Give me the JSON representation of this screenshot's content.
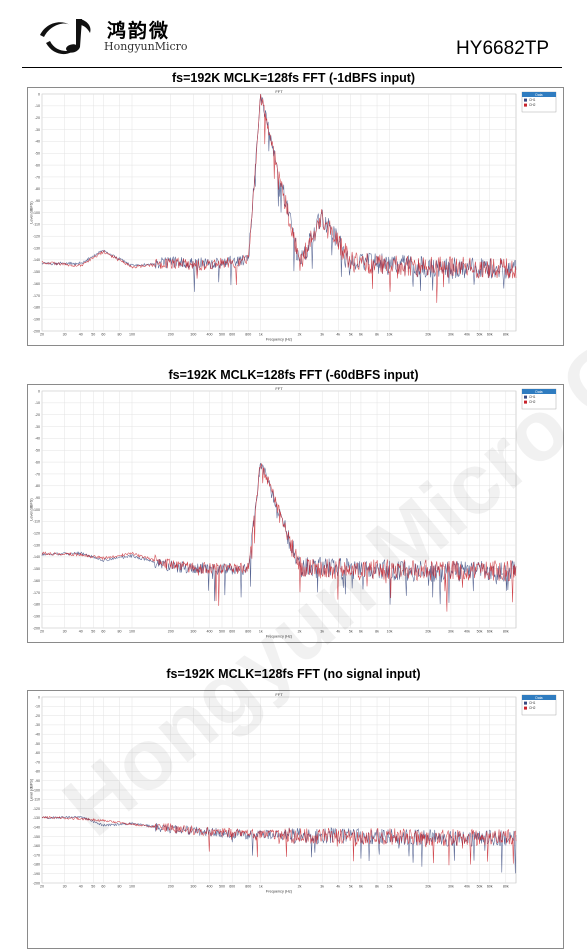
{
  "header": {
    "logo_cn": "鸿韵微",
    "logo_en": "HongyunMicro",
    "part_number": "HY6682TP"
  },
  "watermark": "Hongyun Micro Confidential",
  "colors": {
    "ch1": "#3a4a80",
    "ch2": "#c8232c",
    "grid": "#e3e3e3",
    "legend_header": "#2f7cc0"
  },
  "charts": [
    {
      "heading": "fs=192K MCLK=128fs FFT (-1dBFS input)",
      "title": "FFT",
      "xlabel": "Frequency (Hz)",
      "ylabel": "Level (dBFS)",
      "legend_title": "Data",
      "legend": [
        "CH1",
        "CH2"
      ],
      "x_ticks": [
        "20",
        "30",
        "40",
        "50",
        "60",
        "80",
        "100",
        "200",
        "300",
        "400",
        "500",
        "600",
        "800",
        "1k",
        "2k",
        "3k",
        "4k",
        "5k",
        "6k",
        "8k",
        "10k",
        "20k",
        "30k",
        "40k",
        "50k",
        "60k",
        "80k"
      ],
      "y_ticks": [
        "0",
        "-10",
        "-20",
        "-30",
        "-40",
        "-50",
        "-60",
        "-70",
        "-80",
        "-90",
        "-100",
        "-110",
        "-120",
        "-130",
        "-140",
        "-150",
        "-160",
        "-170",
        "-180",
        "-190",
        "-200"
      ]
    },
    {
      "heading": "fs=192K MCLK=128fs FFT (-60dBFS input)",
      "title": "FFT",
      "xlabel": "Frequency (Hz)",
      "ylabel": "Level (dBFS)",
      "legend_title": "Data",
      "legend": [
        "CH1",
        "CH2"
      ],
      "x_ticks": [
        "20",
        "30",
        "40",
        "50",
        "60",
        "80",
        "100",
        "200",
        "300",
        "400",
        "500",
        "600",
        "800",
        "1k",
        "2k",
        "3k",
        "4k",
        "5k",
        "6k",
        "8k",
        "10k",
        "20k",
        "30k",
        "40k",
        "50k",
        "60k",
        "80k"
      ],
      "y_ticks": [
        "0",
        "-10",
        "-20",
        "-30",
        "-40",
        "-50",
        "-60",
        "-70",
        "-80",
        "-90",
        "-100",
        "-110",
        "-120",
        "-130",
        "-140",
        "-150",
        "-160",
        "-170",
        "-180",
        "-190",
        "-200"
      ]
    },
    {
      "heading": "fs=192K MCLK=128fs FFT (no signal input)",
      "title": "FFT",
      "xlabel": "Frequency (Hz)",
      "ylabel": "Level (dBFS)",
      "legend_title": "Data",
      "legend": [
        "CH1",
        "CH2"
      ],
      "x_ticks": [
        "20",
        "30",
        "40",
        "50",
        "60",
        "80",
        "100",
        "200",
        "300",
        "400",
        "500",
        "600",
        "800",
        "1k",
        "2k",
        "3k",
        "4k",
        "5k",
        "6k",
        "8k",
        "10k",
        "20k",
        "30k",
        "40k",
        "50k",
        "60k",
        "80k"
      ],
      "y_ticks": [
        "0",
        "-10",
        "-20",
        "-30",
        "-40",
        "-50",
        "-60",
        "-70",
        "-80",
        "-90",
        "-100",
        "-110",
        "-120",
        "-130",
        "-140",
        "-150",
        "-160",
        "-170",
        "-180",
        "-190",
        "-200"
      ]
    }
  ],
  "chart_data": [
    {
      "type": "line",
      "title": "FFT",
      "xlabel": "Frequency (Hz)",
      "ylabel": "Level (dBFS)",
      "x_scale": "log",
      "xlim": [
        20,
        96000
      ],
      "ylim": [
        -200,
        0
      ],
      "grid": true,
      "legend_placement": "top-right",
      "series": [
        {
          "name": "CH1",
          "x": [
            20,
            40,
            60,
            100,
            200,
            400,
            800,
            1000,
            2000,
            3000,
            5000,
            10000,
            20000,
            40000,
            96000
          ],
          "y": [
            -143,
            -143,
            -132,
            -145,
            -142,
            -143,
            -140,
            -1,
            -142,
            -103,
            -142,
            -144,
            -146,
            -147,
            -148
          ]
        },
        {
          "name": "CH2",
          "x": [
            20,
            40,
            60,
            100,
            200,
            400,
            800,
            1000,
            2000,
            3000,
            5000,
            10000,
            20000,
            40000,
            96000
          ],
          "y": [
            -142,
            -145,
            -133,
            -146,
            -143,
            -144,
            -141,
            -1,
            -143,
            -104,
            -142,
            -145,
            -146,
            -146,
            -147
          ]
        }
      ]
    },
    {
      "type": "line",
      "title": "FFT",
      "xlabel": "Frequency (Hz)",
      "ylabel": "Level (dBFS)",
      "x_scale": "log",
      "xlim": [
        20,
        96000
      ],
      "ylim": [
        -200,
        0
      ],
      "grid": true,
      "legend_placement": "top-right",
      "series": [
        {
          "name": "CH1",
          "x": [
            20,
            40,
            60,
            100,
            200,
            400,
            800,
            1000,
            2000,
            5000,
            10000,
            20000,
            40000,
            96000
          ],
          "y": [
            -138,
            -137,
            -143,
            -139,
            -148,
            -150,
            -150,
            -60,
            -149,
            -150,
            -151,
            -152,
            -152,
            -152
          ]
        },
        {
          "name": "CH2",
          "x": [
            20,
            40,
            60,
            100,
            200,
            400,
            800,
            1000,
            2000,
            5000,
            10000,
            20000,
            40000,
            96000
          ],
          "y": [
            -137,
            -138,
            -141,
            -137,
            -147,
            -150,
            -150,
            -59,
            -149,
            -150,
            -151,
            -151,
            -152,
            -152
          ]
        }
      ]
    },
    {
      "type": "line",
      "title": "FFT",
      "xlabel": "Frequency (Hz)",
      "ylabel": "Level (dBFS)",
      "x_scale": "log",
      "xlim": [
        20,
        96000
      ],
      "ylim": [
        -200,
        0
      ],
      "grid": true,
      "legend_placement": "top-right",
      "series": [
        {
          "name": "CH1",
          "x": [
            20,
            40,
            60,
            100,
            200,
            400,
            800,
            1000,
            2000,
            5000,
            10000,
            20000,
            40000,
            96000
          ],
          "y": [
            -130,
            -129,
            -138,
            -136,
            -142,
            -145,
            -148,
            -148,
            -149,
            -150,
            -151,
            -151,
            -152,
            -152
          ]
        },
        {
          "name": "CH2",
          "x": [
            20,
            40,
            60,
            100,
            200,
            400,
            800,
            1000,
            2000,
            5000,
            10000,
            20000,
            40000,
            96000
          ],
          "y": [
            -129,
            -131,
            -133,
            -137,
            -141,
            -145,
            -147,
            -147,
            -149,
            -150,
            -150,
            -151,
            -151,
            -151
          ]
        }
      ]
    }
  ]
}
